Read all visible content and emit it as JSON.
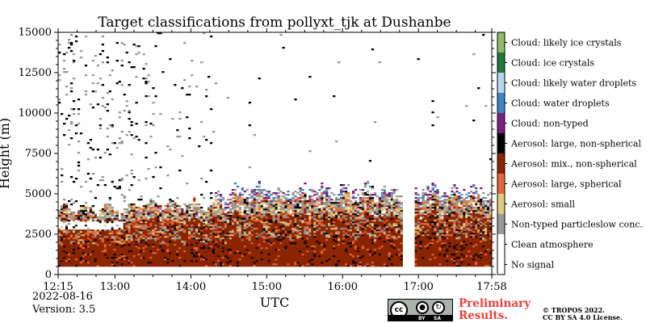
{
  "chart_data": {
    "type": "heatmap",
    "title": "Target classifications from pollyxt_tjk at Dushanbe",
    "xlabel": "UTC",
    "ylabel": "Height (m)",
    "x_ticks": [
      "12:15",
      "13:00",
      "14:00",
      "15:00",
      "16:00",
      "17:00",
      "17:58"
    ],
    "x_tick_hours": [
      12.25,
      13.0,
      14.0,
      15.0,
      16.0,
      17.0,
      17.9667
    ],
    "xlim": [
      12.25,
      17.9667
    ],
    "y_ticks": [
      0,
      2500,
      5000,
      7500,
      10000,
      12500,
      15000
    ],
    "y_tick_labels": [
      "0",
      "2500",
      "5000",
      "7500",
      "10000",
      "12500",
      "15000"
    ],
    "ylim": [
      0,
      15000
    ],
    "data_gap_hours": [
      16.8,
      16.95
    ],
    "lowest_valid_height_m": 500,
    "classes": [
      {
        "label": "No signal",
        "color": "#ffffff"
      },
      {
        "label": "Clean atmosphere",
        "color": "#ffffff"
      },
      {
        "label": "Non-typed particleslow conc.",
        "color": "#999999"
      },
      {
        "label": "Aerosol: small",
        "color": "#e0c87e"
      },
      {
        "label": "Aerosol: large, spherical",
        "color": "#e8673a"
      },
      {
        "label": "Aerosol: mix., non-spherical",
        "color": "#8b2500"
      },
      {
        "label": "Aerosol: large, non-spherical",
        "color": "#000000"
      },
      {
        "label": "Cloud: non-typed",
        "color": "#7b2083"
      },
      {
        "label": "Cloud: water droplets",
        "color": "#3c86c6"
      },
      {
        "label": "Cloud: likely water droplets",
        "color": "#b7d7f0"
      },
      {
        "label": "Cloud: ice crystals",
        "color": "#1c7a3e"
      },
      {
        "label": "Cloud: likely ice crystals",
        "color": "#8ebc6a"
      }
    ]
  },
  "footer": {
    "date": "2022-08-16",
    "version": "Version: 3.5",
    "preliminary_line1": "Preliminary",
    "preliminary_line2": "Results.",
    "copyright_line1": "© TROPOS 2022.",
    "copyright_line2": "CC BY SA 4.0 License.",
    "cc_badge": "cc",
    "cc_by": "BY",
    "cc_sa": "SA"
  }
}
